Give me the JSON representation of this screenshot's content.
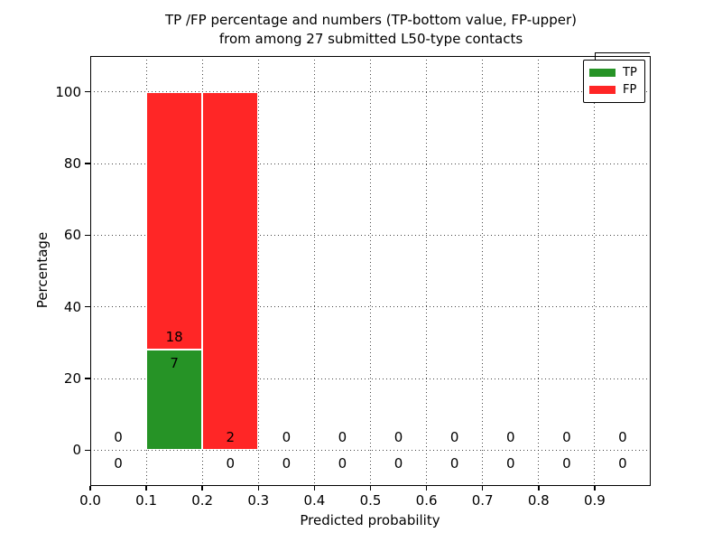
{
  "title": {
    "line1": "TP /FP percentage and numbers (TP-bottom value, FP-upper)",
    "line2": "from among 27 submitted L50-type contacts"
  },
  "axes": {
    "xlabel": "Predicted probability",
    "ylabel": "Percentage"
  },
  "legend": {
    "position": "upper right",
    "items": [
      {
        "label": "TP",
        "color": "#269326"
      },
      {
        "label": "FP",
        "color": "#ff2626"
      }
    ]
  },
  "chart_data": {
    "type": "bar",
    "stacked": true,
    "title": "TP /FP percentage and numbers (TP-bottom value, FP-upper)\nfrom among 27 submitted L50-type contacts",
    "xlabel": "Predicted probability",
    "ylabel": "Percentage",
    "total_submitted_contacts": 27,
    "xlim": [
      0.0,
      1.0
    ],
    "ylim": [
      -10,
      110
    ],
    "xticks": [
      0.0,
      0.1,
      0.2,
      0.3,
      0.4,
      0.5,
      0.6,
      0.7,
      0.8,
      0.9
    ],
    "xtick_labels": [
      "0.0",
      "0.1",
      "0.2",
      "0.3",
      "0.4",
      "0.5",
      "0.6",
      "0.7",
      "0.8",
      "0.9"
    ],
    "yticks": [
      0,
      20,
      40,
      60,
      80,
      100
    ],
    "ytick_labels": [
      "0",
      "20",
      "40",
      "60",
      "80",
      "100"
    ],
    "grid": true,
    "grid_style": "dotted",
    "legend_position": "upper right",
    "bin_edges": [
      0.0,
      0.1,
      0.2,
      0.3,
      0.4,
      0.5,
      0.6,
      0.7,
      0.8,
      0.9,
      1.0
    ],
    "bin_centers": [
      0.05,
      0.15,
      0.25,
      0.35,
      0.45,
      0.55,
      0.65,
      0.75,
      0.85,
      0.95
    ],
    "series": [
      {
        "name": "TP",
        "color": "#269326",
        "counts": [
          0,
          7,
          0,
          0,
          0,
          0,
          0,
          0,
          0,
          0
        ],
        "percent": [
          0,
          28,
          0,
          0,
          0,
          0,
          0,
          0,
          0,
          0
        ]
      },
      {
        "name": "FP",
        "color": "#ff2626",
        "counts": [
          0,
          18,
          2,
          0,
          0,
          0,
          0,
          0,
          0,
          0
        ],
        "percent": [
          0,
          72,
          100,
          0,
          0,
          0,
          0,
          0,
          0,
          0
        ]
      }
    ]
  }
}
